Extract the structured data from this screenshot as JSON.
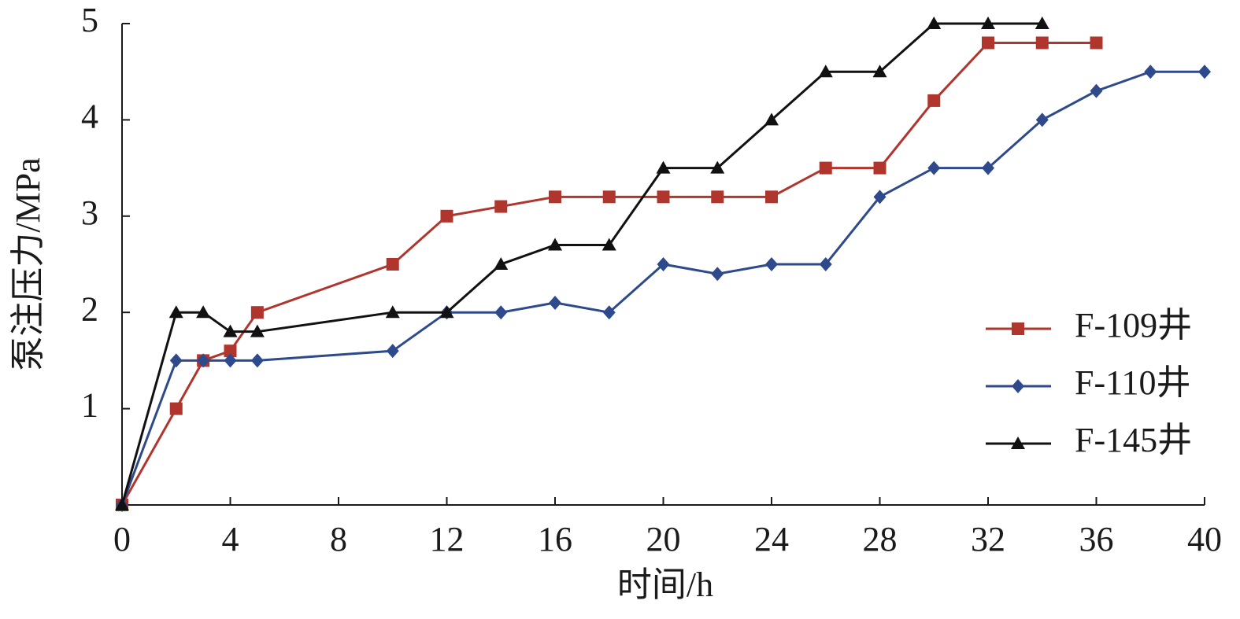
{
  "chart_data": {
    "type": "line",
    "x_label": "时间/h",
    "y_label": "泵注压力/MPa",
    "x": [
      0,
      2,
      3,
      4,
      5,
      10,
      12,
      14,
      16,
      18,
      20,
      22,
      24,
      26,
      28,
      30,
      32,
      34,
      36,
      38,
      40
    ],
    "series": [
      {
        "name": "F-109井",
        "color": "#b0362d",
        "marker": "square",
        "values": [
          0,
          1.0,
          1.5,
          1.6,
          2.0,
          2.5,
          3.0,
          3.1,
          3.2,
          3.2,
          3.2,
          3.2,
          3.2,
          3.5,
          3.5,
          4.2,
          4.8,
          4.8,
          4.8,
          null,
          null
        ]
      },
      {
        "name": "F-110井",
        "color": "#2e4a8c",
        "marker": "diamond",
        "values": [
          0,
          1.5,
          1.5,
          1.5,
          1.5,
          1.6,
          2.0,
          2.0,
          2.1,
          2.0,
          2.5,
          2.4,
          2.5,
          2.5,
          3.2,
          3.5,
          3.5,
          4.0,
          4.3,
          4.5,
          4.5
        ]
      },
      {
        "name": "F-145井",
        "color": "#111111",
        "marker": "triangle",
        "values": [
          0,
          2.0,
          2.0,
          1.8,
          1.8,
          2.0,
          2.0,
          2.5,
          2.7,
          2.7,
          3.5,
          3.5,
          4.0,
          4.5,
          4.5,
          5.0,
          5.0,
          5.0,
          null,
          null,
          null
        ]
      }
    ],
    "xlim": [
      0,
      40
    ],
    "xticks": [
      0,
      4,
      8,
      12,
      16,
      20,
      24,
      28,
      32,
      36,
      40
    ],
    "ylim": [
      0,
      5
    ],
    "yticks": [
      1,
      2,
      3,
      4,
      5
    ],
    "legend": "lower right"
  }
}
